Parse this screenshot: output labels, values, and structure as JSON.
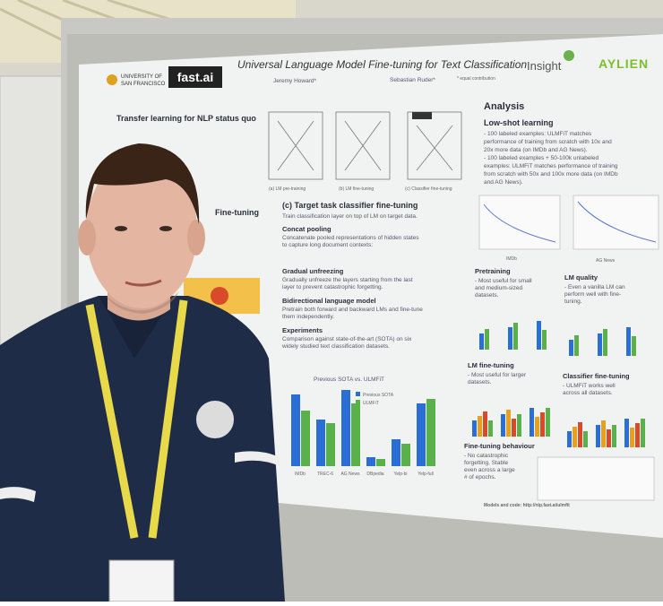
{
  "poster": {
    "logos": {
      "university": [
        "UNIVERSITY OF",
        "SAN FRANCISCO"
      ],
      "fastai": "fast.ai",
      "insight": "Insight",
      "aylien": "AYLIEN"
    },
    "title": "Universal Language Model Fine-tuning for Text Classification",
    "authors": [
      "Jeremy Howard*",
      "Sebastian Ruder*"
    ],
    "note": "* equal contribution",
    "left": {
      "heading": "Transfer learning for NLP status quo",
      "finetuning": "Fine-tuning"
    },
    "figure_captions": [
      "(a) LM pre-training",
      "(b) LM fine-tuning",
      "(c) Classifier fine-tuning"
    ],
    "center": {
      "heading": "(c) Target task classifier fine-tuning",
      "intro": "Train classification layer on top of LM on target data.",
      "sections": [
        {
          "title": "Concat pooling",
          "lines": [
            "Concatenate pooled representations of hidden states",
            "to capture long document contexts:"
          ]
        },
        {
          "title": "Gradual unfreezing",
          "lines": [
            "Gradually unfreeze the layers starting from the last",
            "layer to prevent catastrophic forgetting."
          ]
        },
        {
          "title": "Bidirectional language model",
          "lines": [
            "Pretrain both forward and backward LMs and fine-tune",
            "them independently."
          ]
        },
        {
          "title": "Experiments",
          "lines": [
            "Comparison against state-of-the-art (SOTA) on six",
            "widely studied text classification datasets."
          ]
        }
      ],
      "chart_title": "Previous SOTA vs. ULMFiT",
      "legend": [
        "Previous SOTA",
        "ULMFiT"
      ],
      "categories": [
        "IMDb",
        "TREC-6",
        "AG News",
        "DBpedia",
        "Yelp-bi",
        "Yelp-full"
      ]
    },
    "right": {
      "heading": "Analysis",
      "lowshot": {
        "title": "Low-shot learning",
        "lines": [
          "- 100 labeled examples: ULMFiT matches",
          "performance of training from scratch with 10x and",
          "20x more data (on IMDb and AG News).",
          "- 100 labeled examples + 50-100k unlabeled",
          "examples: ULMFiT matches performance of training",
          "from scratch with 50x and 100x more data (on IMDb",
          "and AG News)."
        ]
      },
      "plot_labels": [
        "IMDb",
        "AG News"
      ],
      "panels": [
        {
          "title": "Pretraining",
          "lines": [
            "- Most useful for small",
            "and medium-sized",
            "datasets."
          ]
        },
        {
          "title": "LM quality",
          "lines": [
            "- Even a vanilla LM can",
            "perform well with fine-",
            "tuning."
          ]
        },
        {
          "title": "LM fine-tuning",
          "lines": [
            "- Most useful for larger",
            "datasets."
          ]
        },
        {
          "title": "Classifier fine-tuning",
          "lines": [
            "- ULMFiT works well",
            "across all datasets."
          ]
        },
        {
          "title": "Fine-tuning behaviour",
          "lines": [
            "- No catastrophic",
            "forgetting. Stable",
            "even across a large",
            "# of epochs."
          ]
        }
      ],
      "footer": "Models and code: http://nlp.fast.ai/ulmfit"
    }
  }
}
